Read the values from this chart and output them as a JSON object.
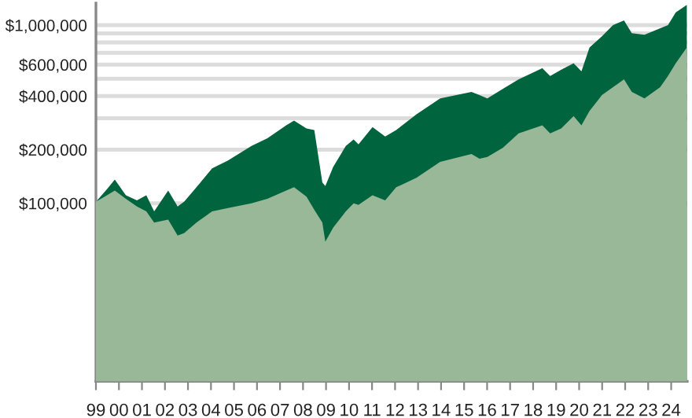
{
  "chart_data": {
    "type": "area",
    "log": "y",
    "grid": "y",
    "x": [
      1999.0,
      1999.48,
      1999.82,
      2000.3,
      2000.78,
      2001.19,
      2001.53,
      2002.14,
      2002.55,
      2002.83,
      2003.37,
      2004.05,
      2004.74,
      2005.76,
      2006.45,
      2007.27,
      2007.61,
      2008.15,
      2008.49,
      2008.84,
      2008.97,
      2009.31,
      2009.86,
      2010.2,
      2010.41,
      2011.02,
      2011.57,
      2012.05,
      2012.93,
      2013.96,
      2015.32,
      2015.67,
      2016.01,
      2016.69,
      2017.37,
      2018.4,
      2018.74,
      2019.22,
      2019.76,
      2020.1,
      2020.45,
      2020.99,
      2021.47,
      2021.95,
      2022.29,
      2022.84,
      2023.52,
      2023.86,
      2024.2,
      2024.68
    ],
    "series": [
      {
        "color": "#00643f",
        "values": [
          102000,
          120000,
          136000,
          111000,
          104000,
          111000,
          90000,
          118000,
          96000,
          102000,
          123000,
          157000,
          174000,
          210000,
          232000,
          274000,
          291000,
          263000,
          258000,
          131000,
          125000,
          160000,
          210000,
          228000,
          214000,
          268000,
          237000,
          258000,
          316000,
          388000,
          422000,
          405000,
          388000,
          440000,
          497000,
          574000,
          518000,
          562000,
          611000,
          551000,
          750000,
          866000,
          1000000,
          1064000,
          902000,
          884000,
          960000,
          1000000,
          1179000,
          1300000
        ]
      },
      {
        "color": "#98b898",
        "values": [
          102000,
          111000,
          118000,
          106000,
          96000,
          90000,
          78000,
          81000,
          66000,
          68000,
          78000,
          90000,
          94000,
          100000,
          106000,
          118000,
          123000,
          109000,
          92000,
          78000,
          61000,
          73000,
          90000,
          100000,
          98000,
          111000,
          104000,
          123000,
          139000,
          171000,
          189000,
          178000,
          182000,
          205000,
          247000,
          274000,
          247000,
          263000,
          309000,
          274000,
          330000,
          405000,
          449000,
          497000,
          422000,
          388000,
          449000,
          518000,
          611000,
          750000
        ]
      }
    ],
    "xlim": [
      1999,
      2024.7
    ],
    "xticks": [
      {
        "value": 1999,
        "label": "99"
      },
      {
        "value": 2000,
        "label": "00"
      },
      {
        "value": 2001,
        "label": "01"
      },
      {
        "value": 2002,
        "label": "02"
      },
      {
        "value": 2003,
        "label": "03"
      },
      {
        "value": 2004,
        "label": "04"
      },
      {
        "value": 2005,
        "label": "05"
      },
      {
        "value": 2006,
        "label": "06"
      },
      {
        "value": 2007,
        "label": "07"
      },
      {
        "value": 2008,
        "label": "08"
      },
      {
        "value": 2009,
        "label": "09"
      },
      {
        "value": 2010,
        "label": "10"
      },
      {
        "value": 2011,
        "label": "11"
      },
      {
        "value": 2012,
        "label": "12"
      },
      {
        "value": 2013,
        "label": "13"
      },
      {
        "value": 2014,
        "label": "14"
      },
      {
        "value": 2015,
        "label": "15"
      },
      {
        "value": 2016,
        "label": "16"
      },
      {
        "value": 2017,
        "label": "17"
      },
      {
        "value": 2018,
        "label": "18"
      },
      {
        "value": 2019,
        "label": "19"
      },
      {
        "value": 2020,
        "label": "20"
      },
      {
        "value": 2021,
        "label": "21"
      },
      {
        "value": 2022,
        "label": "22"
      },
      {
        "value": 2023,
        "label": "23"
      },
      {
        "value": 2024,
        "label": "24"
      }
    ],
    "ylim": [
      10000,
      1330000
    ],
    "yticks": [
      {
        "value": 100000,
        "label": "$100,000"
      },
      {
        "value": 200000,
        "label": "$200,000"
      },
      {
        "value": 300000,
        "label": null
      },
      {
        "value": 400000,
        "label": "$400,000"
      },
      {
        "value": 500000,
        "label": null
      },
      {
        "value": 600000,
        "label": "$600,000"
      },
      {
        "value": 700000,
        "label": null
      },
      {
        "value": 800000,
        "label": null
      },
      {
        "value": 900000,
        "label": null
      },
      {
        "value": 1000000,
        "label": "$1,000,000"
      }
    ]
  }
}
